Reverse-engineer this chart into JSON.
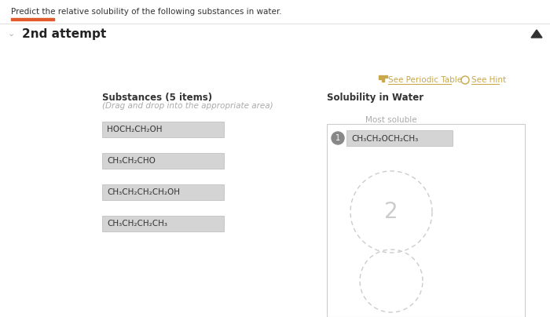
{
  "title": "Predict the relative solubility of the following substances in water.",
  "attempt_label": "2nd attempt",
  "toolbar_bar_color": "#e05a2b",
  "see_periodic_table": "See Periodic Table",
  "see_hint": "See Hint",
  "substances_header": "Substances (5 items)",
  "substances_subheader": "(Drag and drop into the appropriate area)",
  "solubility_header": "Solubility in Water",
  "most_soluble_label": "Most soluble",
  "substances": [
    "HOCH₂CH₂OH",
    "CH₃CH₂CHO",
    "CH₃CH₂CH₂CH₂OH",
    "CH₃CH₂CH₂CH₃"
  ],
  "placed_item": "CH₃CH₂OCH₂CH₃",
  "placed_number": "1",
  "circle_number": "2",
  "box_fill": "#d4d4d4",
  "box_border": "#bbbbbb",
  "placed_box_fill": "#d4d4d4",
  "placed_number_bg": "#888888",
  "circle_color": "#d9d9d9",
  "bg_color": "#ffffff",
  "text_color": "#333333",
  "attempt_color": "#222222",
  "subtitle_color": "#aaaaaa",
  "link_color": "#c8a84b",
  "header_line_color": "#e0e0e0",
  "orange_bar_color": "#e05a2b",
  "chevron_color": "#aaaaaa",
  "solbox_border": "#cccccc"
}
